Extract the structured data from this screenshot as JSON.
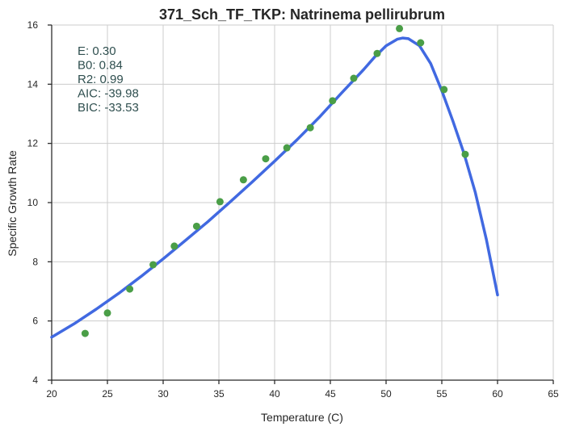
{
  "chart_data": {
    "type": "scatter",
    "title": "371_Sch_TF_TKP: Natrinema pellirubrum",
    "xlabel": "Temperature (C)",
    "ylabel": "Specific Growth Rate",
    "xlim": [
      20,
      65
    ],
    "ylim": [
      4,
      16
    ],
    "xticks": [
      20,
      25,
      30,
      35,
      40,
      45,
      50,
      55,
      60,
      65
    ],
    "yticks": [
      4,
      6,
      8,
      10,
      12,
      14,
      16
    ],
    "grid": true,
    "colors": {
      "points": "#4a9e47",
      "fit": "#4169e1"
    },
    "stats": [
      "E:  0.30",
      "B0:  0.84",
      "R2:  0.99",
      "AIC: -39.98",
      "BIC: -33.53"
    ],
    "points": [
      {
        "x": 23.0,
        "y": 5.58
      },
      {
        "x": 25.0,
        "y": 6.27
      },
      {
        "x": 27.0,
        "y": 7.08
      },
      {
        "x": 29.1,
        "y": 7.9
      },
      {
        "x": 31.0,
        "y": 8.53
      },
      {
        "x": 33.0,
        "y": 9.2
      },
      {
        "x": 35.1,
        "y": 10.03
      },
      {
        "x": 37.2,
        "y": 10.77
      },
      {
        "x": 39.2,
        "y": 11.48
      },
      {
        "x": 41.1,
        "y": 11.85
      },
      {
        "x": 43.2,
        "y": 12.53
      },
      {
        "x": 45.2,
        "y": 13.44
      },
      {
        "x": 47.1,
        "y": 14.2
      },
      {
        "x": 49.2,
        "y": 15.04
      },
      {
        "x": 51.2,
        "y": 15.88
      },
      {
        "x": 53.1,
        "y": 15.4
      },
      {
        "x": 55.2,
        "y": 13.82
      },
      {
        "x": 57.1,
        "y": 11.63
      }
    ],
    "fit_line": [
      {
        "x": 20,
        "y": 5.45
      },
      {
        "x": 22,
        "y": 5.9
      },
      {
        "x": 24,
        "y": 6.4
      },
      {
        "x": 26,
        "y": 6.93
      },
      {
        "x": 28,
        "y": 7.5
      },
      {
        "x": 30,
        "y": 8.1
      },
      {
        "x": 32,
        "y": 8.72
      },
      {
        "x": 34,
        "y": 9.35
      },
      {
        "x": 36,
        "y": 10.02
      },
      {
        "x": 38,
        "y": 10.7
      },
      {
        "x": 40,
        "y": 11.4
      },
      {
        "x": 42,
        "y": 12.12
      },
      {
        "x": 44,
        "y": 12.88
      },
      {
        "x": 46,
        "y": 13.7
      },
      {
        "x": 48,
        "y": 14.5
      },
      {
        "x": 49,
        "y": 14.93
      },
      {
        "x": 50,
        "y": 15.3
      },
      {
        "x": 51,
        "y": 15.52
      },
      {
        "x": 51.5,
        "y": 15.56
      },
      {
        "x": 52,
        "y": 15.54
      },
      {
        "x": 53,
        "y": 15.3
      },
      {
        "x": 54,
        "y": 14.7
      },
      {
        "x": 55,
        "y": 13.78
      },
      {
        "x": 56,
        "y": 12.75
      },
      {
        "x": 57,
        "y": 11.65
      },
      {
        "x": 58,
        "y": 10.35
      },
      {
        "x": 59,
        "y": 8.75
      },
      {
        "x": 60,
        "y": 6.88
      }
    ]
  }
}
